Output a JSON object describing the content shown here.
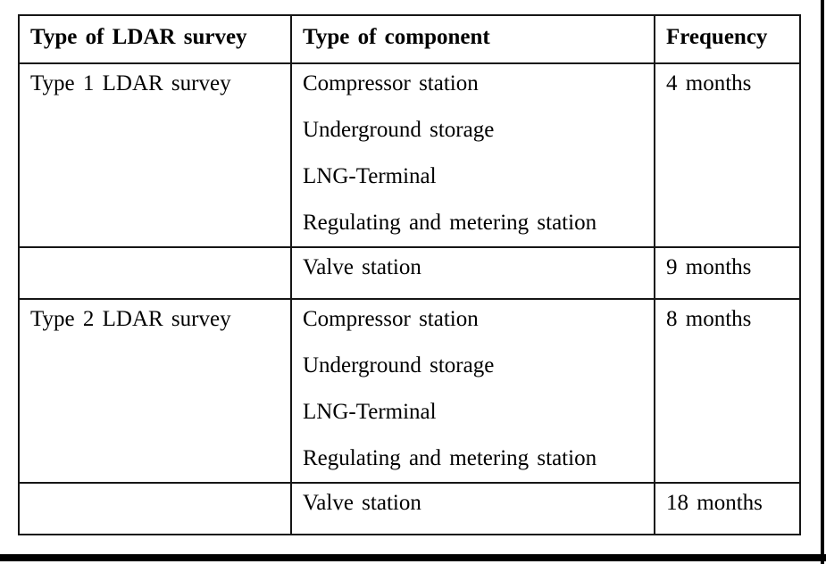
{
  "colors": {
    "text": "#000000",
    "table_border": "#161616",
    "background": "#ffffff",
    "frame": "#000000"
  },
  "table": {
    "headers": [
      "Type of LDAR survey",
      "Type of component",
      "Frequency"
    ],
    "rows": [
      {
        "survey": "Type 1 LDAR survey",
        "components": [
          "Compressor station",
          "Underground storage",
          "LNG-Terminal",
          "Regulating and metering station"
        ],
        "frequency": "4 months"
      },
      {
        "survey": "",
        "components": [
          "Valve station"
        ],
        "frequency": "9 months"
      },
      {
        "survey": "Type 2 LDAR survey",
        "components": [
          "Compressor station",
          "Underground storage",
          "LNG-Terminal",
          "Regulating and metering station"
        ],
        "frequency": "8 months"
      },
      {
        "survey": "",
        "components": [
          "Valve station"
        ],
        "frequency": "18 months"
      }
    ]
  }
}
